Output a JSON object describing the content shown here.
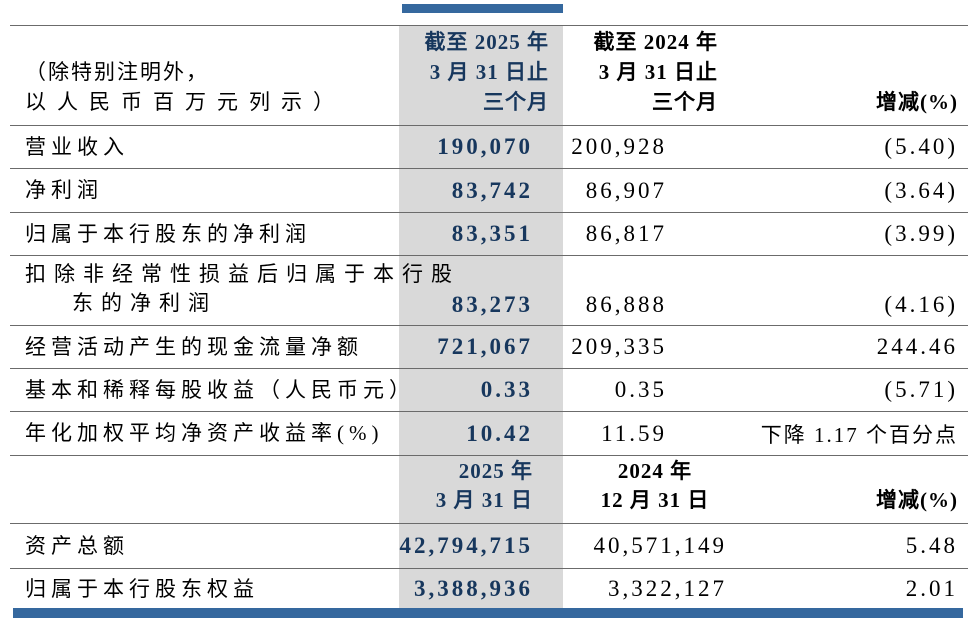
{
  "accent": {
    "bar_color": "#35689E",
    "highlight_bg": "#D9D9D9",
    "highlight_text": "#17375D",
    "rule_color": "#6B6B6B"
  },
  "table": {
    "note_lines": [
      "（除特别注明外，",
      "以人民币百万元列示）"
    ],
    "period_header": {
      "current": [
        "截至 2025 年",
        "3 月 31 日止",
        "三个月"
      ],
      "prior": [
        "截至 2024 年",
        "3 月 31 日止",
        "三个月"
      ],
      "change_label": "增减(%)"
    },
    "income_rows": [
      {
        "label_lines": [
          "营业收入"
        ],
        "current": "190,070",
        "prior": "200,928",
        "change": "(5.40)"
      },
      {
        "label_lines": [
          "净利润"
        ],
        "current": "83,742",
        "prior": "86,907",
        "change": "(3.64)"
      },
      {
        "label_lines": [
          "归属于本行股东的净利润"
        ],
        "current": "83,351",
        "prior": "86,817",
        "change": "(3.99)"
      },
      {
        "label_lines": [
          "扣除非经常性损益后归属于本行股",
          "东的净利润"
        ],
        "current": "83,273",
        "prior": "86,888",
        "change": "(4.16)"
      },
      {
        "label_lines": [
          "经营活动产生的现金流量净额"
        ],
        "current": "721,067",
        "prior": "209,335",
        "change": "244.46"
      },
      {
        "label_lines": [
          "基本和稀释每股收益（人民币元）"
        ],
        "current": "0.33",
        "prior": "0.35",
        "change": "(5.71)"
      },
      {
        "label_lines": [
          "年化加权平均净资产收益率(%)"
        ],
        "current": "10.42",
        "prior": "11.59",
        "change": "下降 1.17 个百分点"
      }
    ],
    "date_header": {
      "current": [
        "2025 年",
        "3 月 31 日"
      ],
      "prior": [
        "2024 年",
        "12 月 31 日"
      ],
      "change_label": "增减(%)"
    },
    "balance_rows": [
      {
        "label_lines": [
          "资产总额"
        ],
        "current": "42,794,715",
        "prior": "40,571,149",
        "change": "5.48"
      },
      {
        "label_lines": [
          "归属于本行股东权益"
        ],
        "current": "3,388,936",
        "prior": "3,322,127",
        "change": "2.01"
      }
    ]
  }
}
